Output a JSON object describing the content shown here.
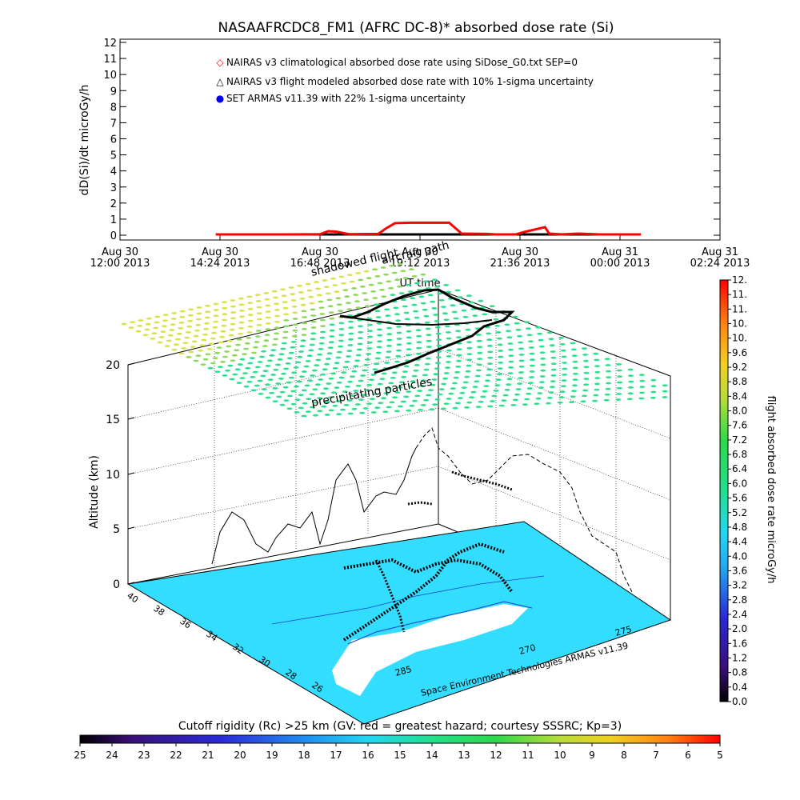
{
  "chart_data": [
    {
      "type": "line",
      "title": "NASAAFRCDC8_FM1 (AFRC DC-8)* absorbed dose rate (Si)",
      "ylabel": "dD(Si)/dt microGy/h",
      "xlabel": "UT time",
      "ylim": [
        0,
        12
      ],
      "y_ticks": [
        "0",
        "1",
        "2",
        "3",
        "4",
        "5",
        "6",
        "7",
        "8",
        "9",
        "10",
        "11",
        "12"
      ],
      "x_ticks": [
        {
          "date": "Aug 30",
          "time": "12:00 2013"
        },
        {
          "date": "Aug 30",
          "time": "14:24 2013"
        },
        {
          "date": "Aug 30",
          "time": "16:48 2013"
        },
        {
          "date": "Aug 30",
          "time": "19:12 2013"
        },
        {
          "date": "Aug 30",
          "time": "21:36 2013"
        },
        {
          "date": "Aug 31",
          "time": "00:00 2013"
        },
        {
          "date": "Aug 31",
          "time": "02:24 2013"
        }
      ],
      "legend": [
        {
          "marker": "◇",
          "color": "#ff0000",
          "label": "NAIRAS v3 climatological absorbed dose rate using SiDose_G0.txt SEP=0"
        },
        {
          "marker": "△",
          "color": "#000000",
          "label": "NAIRAS v3 flight modeled absorbed dose rate with 10% 1-sigma uncertainty"
        },
        {
          "marker": "●",
          "color": "#0000ff",
          "label": "SET ARMAS v11.39 with 22% 1-sigma uncertainty"
        }
      ],
      "legend_placement": "top-left",
      "series": [
        {
          "name": "NAIRAS v3 climatological absorbed dose rate using SiDose_G0.txt SEP=0",
          "color": "#ff0000",
          "x": [
            14.3,
            16.0,
            16.8,
            17.0,
            17.2,
            17.5,
            18.2,
            18.4,
            18.6,
            19.0,
            19.9,
            20.2,
            20.8,
            21.0,
            21.5,
            21.7,
            22.2,
            22.3,
            22.6,
            23.0,
            23.5,
            24.5
          ],
          "y": [
            0.05,
            0.05,
            0.06,
            0.25,
            0.22,
            0.06,
            0.08,
            0.45,
            0.75,
            0.78,
            0.78,
            0.1,
            0.08,
            0.05,
            0.05,
            0.2,
            0.5,
            0.1,
            0.05,
            0.1,
            0.05,
            0.05
          ]
        },
        {
          "name": "NAIRAS v3 flight modeled absorbed dose rate with 10% 1-sigma uncertainty",
          "color": "#000000",
          "x": [
            14.3,
            15.5,
            16.8,
            18.0,
            19.2,
            20.4,
            21.6,
            22.8,
            24.0,
            24.5
          ],
          "y": [
            0.05,
            0.05,
            0.05,
            0.05,
            0.05,
            0.05,
            0.05,
            0.05,
            0.05,
            0.05
          ]
        }
      ]
    },
    {
      "type": "scatter",
      "annotations": [
        "aircraft path",
        "shadowed flight",
        "precipitating particles"
      ],
      "zlabel": "Altitude (km)",
      "z_ticks": [
        "0",
        "5",
        "10",
        "15",
        "20"
      ],
      "lat_ticks": [
        "40",
        "38",
        "36",
        "34",
        "32",
        "30",
        "28",
        "26"
      ],
      "lon_ticks": [
        "285",
        "270",
        "275"
      ],
      "credit": "Space Environment Technologies ARMAS v11.39",
      "dose_colorbar": {
        "label": "flight absorbed dose rate microGy/h",
        "range": [
          0,
          12
        ],
        "ticks": [
          "0.0",
          "0.4",
          "0.8",
          "1.2",
          "1.6",
          "2.0",
          "2.4",
          "2.8",
          "3.2",
          "3.6",
          "4.0",
          "4.4",
          "4.8",
          "5.2",
          "5.6",
          "6.0",
          "6.4",
          "6.8",
          "7.2",
          "7.6",
          "8.0",
          "8.4",
          "8.8",
          "9.2",
          "9.6",
          "10.",
          "10.",
          "11.",
          "11.",
          "12."
        ]
      },
      "rc_colorbar": {
        "label": "Cutoff rigidity (Rc) >25 km (GV: red = greatest hazard; courtesy SSSRC; Kp=3)",
        "ticks": [
          "25",
          "24",
          "23",
          "22",
          "21",
          "20",
          "19",
          "18",
          "17",
          "16",
          "15",
          "14",
          "13",
          "12",
          "11",
          "10",
          "9",
          "8",
          "7",
          "6",
          "5"
        ]
      },
      "colors": {
        "map": "#33ddff",
        "land_white": "#ffffff",
        "dots_top": "#d8e24a",
        "dots_green": "#2ae08a",
        "path": "#000000"
      }
    }
  ]
}
